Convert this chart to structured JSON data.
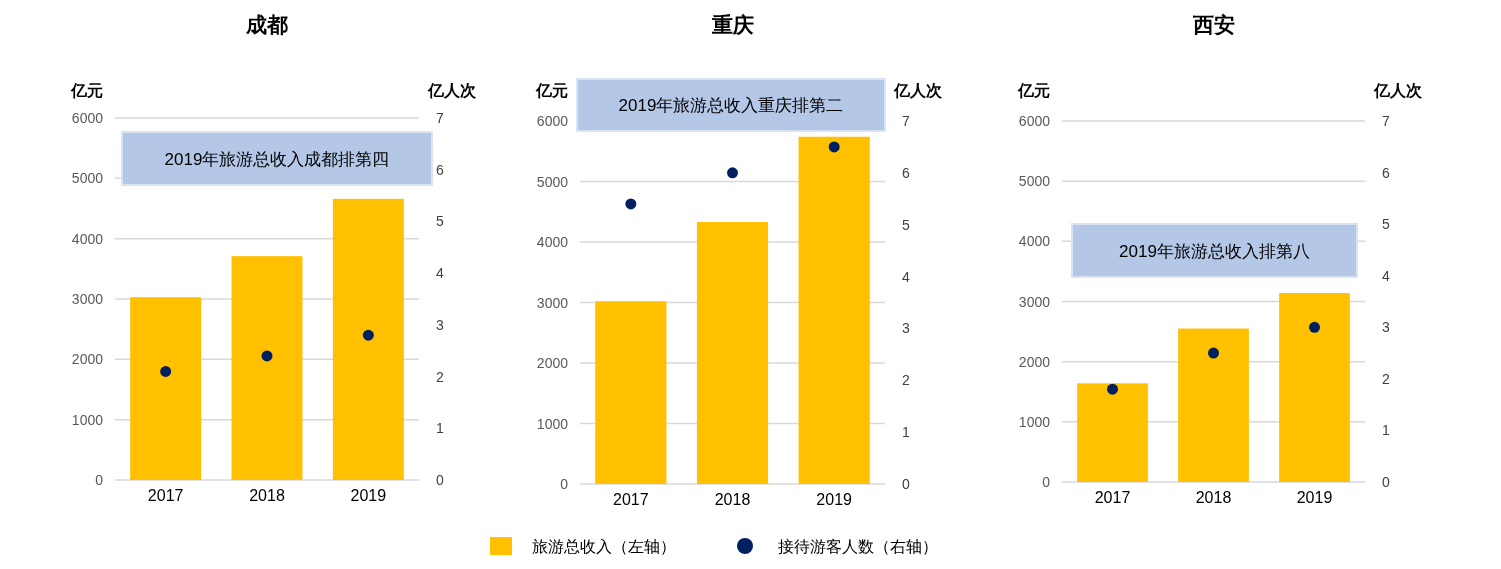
{
  "chart_data": [
    {
      "type": "bar",
      "title": "成都",
      "ylabel": "亿元",
      "y2label": "亿人次",
      "categories": [
        "2017",
        "2018",
        "2019"
      ],
      "series": [
        {
          "color": "#ffc000",
          "values": [
            3030,
            3710,
            4660
          ]
        },
        {
          "type": "scatter",
          "axis": "y2",
          "color": "#002060",
          "values": [
            2.1,
            2.4,
            2.8
          ]
        }
      ],
      "ylim": [
        0,
        6000
      ],
      "yticks": [
        0,
        1000,
        2000,
        3000,
        4000,
        5000,
        6000
      ],
      "y2lim": [
        0,
        7
      ],
      "y2ticks": [
        0,
        1,
        2,
        3,
        4,
        5,
        6,
        7
      ],
      "grid": "y",
      "marker": "circle",
      "annotations": [
        "2019年旅游总收入成都排第四"
      ]
    },
    {
      "type": "bar",
      "title": "重庆",
      "ylabel": "亿元",
      "y2label": "亿人次",
      "categories": [
        "2017",
        "2018",
        "2019"
      ],
      "series": [
        {
          "name": "旅游总收入（左轴）",
          "color": "#ffc000",
          "values": [
            3020,
            4330,
            5740
          ]
        },
        {
          "type": "scatter",
          "name": "接待游客人数（右轴）",
          "axis": "y2",
          "color": "#002060",
          "values": [
            5.4,
            6.0,
            6.5
          ]
        }
      ],
      "ylim": [
        0,
        6000
      ],
      "yticks": [
        0,
        1000,
        2000,
        3000,
        4000,
        5000,
        6000
      ],
      "y2lim": [
        0,
        7
      ],
      "y2ticks": [
        0,
        1,
        2,
        3,
        4,
        5,
        6,
        7
      ],
      "grid": "y",
      "marker": "circle",
      "legend": "bottom",
      "annotations": [
        "2019年旅游总收入重庆排第二"
      ]
    },
    {
      "type": "bar",
      "title": "西安",
      "ylabel": "亿元",
      "y2label": "亿人次",
      "categories": [
        "2017",
        "2018",
        "2019"
      ],
      "series": [
        {
          "color": "#ffc000",
          "values": [
            1640,
            2550,
            3140
          ]
        },
        {
          "type": "scatter",
          "axis": "y2",
          "color": "#002060",
          "values": [
            1.8,
            2.5,
            3.0
          ]
        }
      ],
      "ylim": [
        0,
        6000
      ],
      "yticks": [
        0,
        1000,
        2000,
        3000,
        4000,
        5000,
        6000
      ],
      "y2lim": [
        0,
        7
      ],
      "y2ticks": [
        0,
        1,
        2,
        3,
        4,
        5,
        6,
        7
      ],
      "grid": "y",
      "marker": "circle",
      "annotations": [
        "2019年旅游总收入排第八"
      ]
    }
  ]
}
